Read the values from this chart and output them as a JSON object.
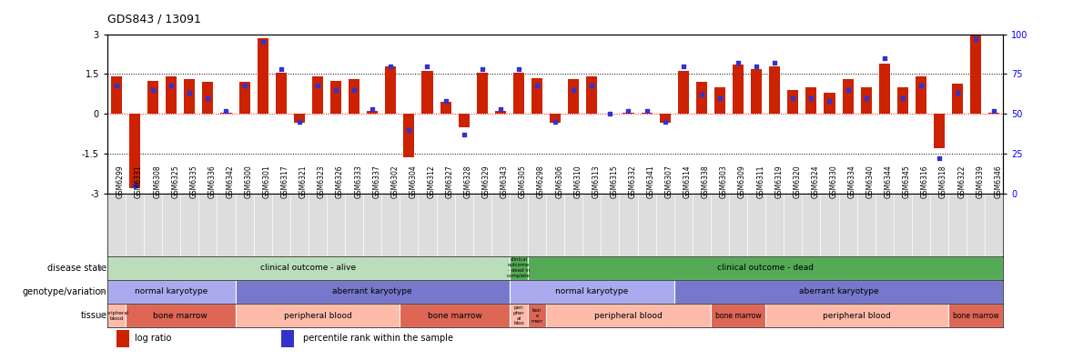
{
  "title": "GDS843 / 13091",
  "samples": [
    "GSM6299",
    "GSM6331",
    "GSM6308",
    "GSM6325",
    "GSM6335",
    "GSM6336",
    "GSM6342",
    "GSM6300",
    "GSM6301",
    "GSM6317",
    "GSM6321",
    "GSM6323",
    "GSM6326",
    "GSM6333",
    "GSM6337",
    "GSM6302",
    "GSM6304",
    "GSM6312",
    "GSM6327",
    "GSM6328",
    "GSM6329",
    "GSM6343",
    "GSM6305",
    "GSM6298",
    "GSM6306",
    "GSM6310",
    "GSM6313",
    "GSM6315",
    "GSM6332",
    "GSM6341",
    "GSM6307",
    "GSM6314",
    "GSM6338",
    "GSM6303",
    "GSM6309",
    "GSM6311",
    "GSM6319",
    "GSM6320",
    "GSM6324",
    "GSM6330",
    "GSM6334",
    "GSM6340",
    "GSM6344",
    "GSM6345",
    "GSM6316",
    "GSM6318",
    "GSM6322",
    "GSM6339",
    "GSM6346"
  ],
  "log_ratio": [
    1.4,
    -2.8,
    1.25,
    1.4,
    1.3,
    1.2,
    0.05,
    1.2,
    2.85,
    1.55,
    -0.35,
    1.4,
    1.25,
    1.3,
    0.1,
    1.8,
    -1.65,
    1.6,
    0.45,
    -0.5,
    1.55,
    0.1,
    1.55,
    1.35,
    -0.35,
    1.3,
    1.4,
    0.0,
    0.05,
    0.05,
    -0.35,
    1.6,
    1.2,
    1.0,
    1.85,
    1.7,
    1.8,
    0.9,
    1.0,
    0.8,
    1.3,
    1.0,
    1.9,
    1.0,
    1.4,
    -1.3,
    1.15,
    3.0,
    0.05
  ],
  "percentile": [
    68,
    5,
    65,
    68,
    63,
    60,
    52,
    68,
    95,
    78,
    45,
    68,
    65,
    65,
    53,
    80,
    40,
    80,
    58,
    37,
    78,
    53,
    78,
    68,
    45,
    65,
    68,
    50,
    52,
    52,
    45,
    80,
    62,
    60,
    82,
    80,
    82,
    60,
    60,
    58,
    65,
    60,
    85,
    60,
    68,
    22,
    63,
    97,
    52
  ],
  "ylim": [
    -3,
    3
  ],
  "y_left_ticks": [
    -3,
    -1.5,
    0,
    1.5,
    3
  ],
  "y_left_labels": [
    "-3",
    "-1.5",
    "0",
    "1.5",
    "3"
  ],
  "y_right_ticks": [
    0,
    25,
    50,
    75,
    100
  ],
  "y_right_labels": [
    "0",
    "25",
    "50",
    "75",
    "100"
  ],
  "bar_color": "#cc2200",
  "dot_color": "#3333cc",
  "chart_bg": "#ffffff",
  "label_bg": "#dddddd",
  "disease_state_groups": [
    {
      "label": "clinical outcome - alive",
      "start": 0,
      "end": 22,
      "color": "#bbddbb"
    },
    {
      "label": "clinical\noutcome\n- dead in\ncomplete",
      "start": 22,
      "end": 23,
      "color": "#55aa55"
    },
    {
      "label": "clinical outcome - dead",
      "start": 23,
      "end": 49,
      "color": "#55aa55"
    }
  ],
  "genotype_groups": [
    {
      "label": "normal karyotype",
      "start": 0,
      "end": 7,
      "color": "#aaaaee"
    },
    {
      "label": "aberrant karyotype",
      "start": 7,
      "end": 22,
      "color": "#7777cc"
    },
    {
      "label": "normal karyotype",
      "start": 22,
      "end": 31,
      "color": "#aaaaee"
    },
    {
      "label": "aberrant karyotype",
      "start": 31,
      "end": 49,
      "color": "#7777cc"
    }
  ],
  "tissue_groups": [
    {
      "label": "peripheral\nblood",
      "start": 0,
      "end": 1,
      "color": "#ffbbaa"
    },
    {
      "label": "bone marrow",
      "start": 1,
      "end": 7,
      "color": "#dd6655"
    },
    {
      "label": "peripheral blood",
      "start": 7,
      "end": 16,
      "color": "#ffbbaa"
    },
    {
      "label": "bone marrow",
      "start": 16,
      "end": 22,
      "color": "#dd6655"
    },
    {
      "label": "peri\npher\nal\nbloo",
      "start": 22,
      "end": 23,
      "color": "#ffbbaa"
    },
    {
      "label": "bon\ne\nmarr",
      "start": 23,
      "end": 24,
      "color": "#dd6655"
    },
    {
      "label": "peripheral blood",
      "start": 24,
      "end": 33,
      "color": "#ffbbaa"
    },
    {
      "label": "bone marrow",
      "start": 33,
      "end": 36,
      "color": "#dd6655"
    },
    {
      "label": "peripheral blood",
      "start": 36,
      "end": 46,
      "color": "#ffbbaa"
    },
    {
      "label": "bone marrow",
      "start": 46,
      "end": 49,
      "color": "#dd6655"
    }
  ],
  "row_labels": [
    "disease state",
    "genotype/variation",
    "tissue"
  ],
  "legend_items": [
    {
      "label": "log ratio",
      "color": "#cc2200"
    },
    {
      "label": "percentile rank within the sample",
      "color": "#3333cc"
    }
  ]
}
